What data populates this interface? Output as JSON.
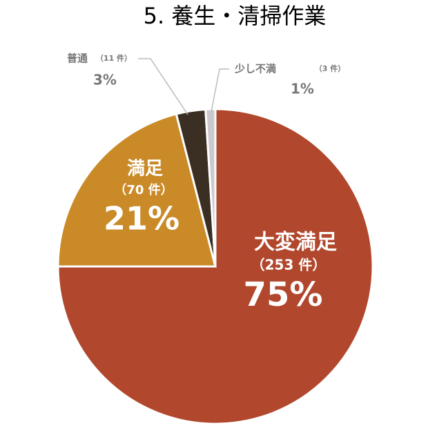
{
  "chart_data": {
    "type": "pie",
    "title": "5. 養生・清掃作業",
    "categories": [
      "大変満足",
      "満足",
      "普通",
      "少し不満"
    ],
    "count_labels": [
      "（253 件）",
      "（70 件）",
      "（11 件）",
      "（3 件）"
    ],
    "values": [
      75,
      21,
      3,
      1
    ],
    "value_labels": [
      "75%",
      "21%",
      "3%",
      "1%"
    ],
    "colors": [
      "#b1472c",
      "#c98a27",
      "#3b2e23",
      "#c9c9ce"
    ]
  }
}
